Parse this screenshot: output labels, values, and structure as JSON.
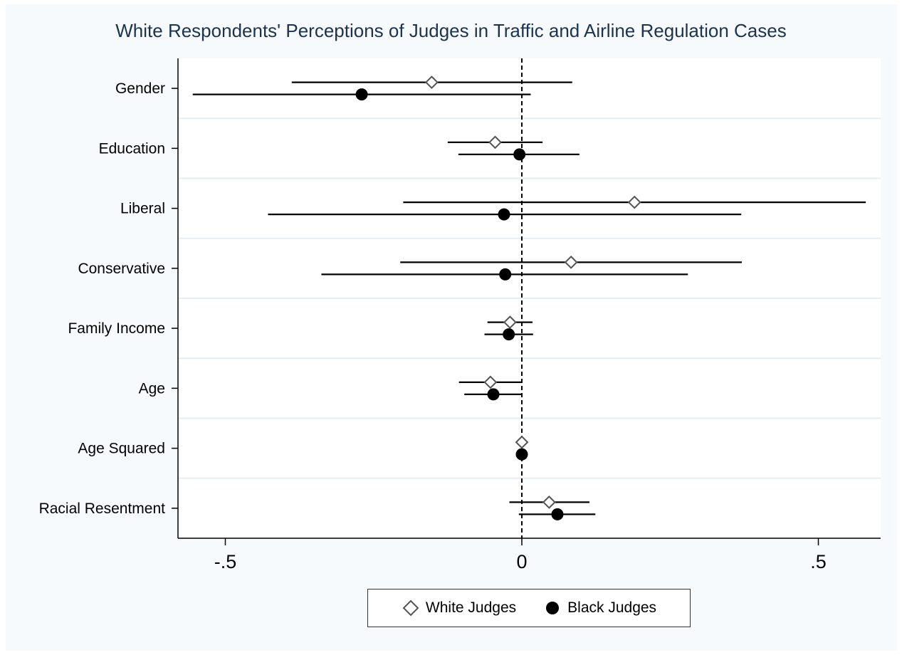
{
  "chart_data": {
    "type": "scatter",
    "subtype": "coefficient-plot-horizontal",
    "title": "White Respondents' Perceptions of Judges in Traffic and Airline Regulation Cases",
    "xlabel": "",
    "ylabel": "",
    "xlim": [
      -0.6,
      0.605
    ],
    "xticks": [
      -0.5,
      0,
      0.5
    ],
    "xtick_labels": [
      "-.5",
      "0",
      ".5"
    ],
    "reference_line": {
      "x": 0,
      "style": "dashed"
    },
    "categories": [
      "Gender",
      "Education",
      "Liberal",
      "Conservative",
      "Family Income",
      "Age",
      "Age Squared",
      "Racial Resentment"
    ],
    "series": [
      {
        "name": "White Judges",
        "marker": "hollow-diamond",
        "color": "#555555",
        "estimates": [
          -0.152,
          -0.045,
          0.19,
          0.083,
          -0.02,
          -0.053,
          0.0,
          0.046
        ],
        "ci_low": [
          -0.388,
          -0.125,
          -0.2,
          -0.205,
          -0.058,
          -0.106,
          -0.001,
          -0.021
        ],
        "ci_high": [
          0.085,
          0.035,
          0.58,
          0.371,
          0.018,
          -0.001,
          0.001,
          0.114
        ]
      },
      {
        "name": "Black Judges",
        "marker": "filled-circle",
        "color": "#000000",
        "estimates": [
          -0.27,
          -0.004,
          -0.03,
          -0.028,
          -0.022,
          -0.048,
          0.0,
          0.06
        ],
        "ci_low": [
          -0.555,
          -0.107,
          -0.428,
          -0.338,
          -0.063,
          -0.097,
          -0.001,
          -0.005
        ],
        "ci_high": [
          0.015,
          0.097,
          0.37,
          0.28,
          0.019,
          0.001,
          0.001,
          0.124
        ]
      }
    ],
    "legend": {
      "position": "bottom-center",
      "entries": [
        "White Judges",
        "Black Judges"
      ]
    },
    "grid": "horizontal-between-categories"
  }
}
